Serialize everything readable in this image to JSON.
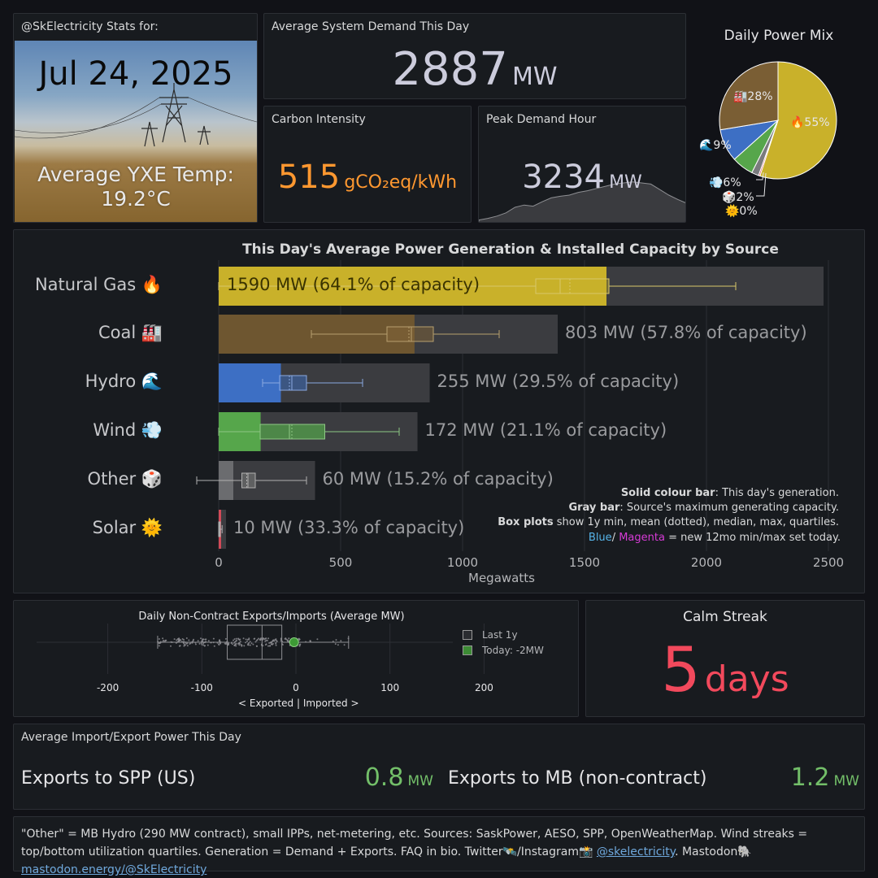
{
  "date_panel": {
    "title": "@SkElectricity Stats for:",
    "date": "Jul 24, 2025",
    "temp_line1": "Average YXE Temp:",
    "temp_line2": "19.2°C"
  },
  "demand_panel": {
    "title": "Average System Demand This Day",
    "value": "2887",
    "unit": "MW"
  },
  "carbon_panel": {
    "title": "Carbon Intensity",
    "value": "515",
    "unit": "gCO₂eq/kWh",
    "color": "#ff9830"
  },
  "peak_panel": {
    "title": "Peak Demand Hour",
    "value": "3234",
    "unit": "MW",
    "sparkline": [
      0.05,
      0.08,
      0.12,
      0.18,
      0.28,
      0.32,
      0.3,
      0.38,
      0.45,
      0.48,
      0.5,
      0.55,
      0.58,
      0.62,
      0.66,
      0.7,
      0.72,
      0.74,
      0.72,
      0.7,
      0.6,
      0.5,
      0.42,
      0.35
    ]
  },
  "power_mix": {
    "title": "Daily Power Mix",
    "slices": [
      {
        "name": "Natural Gas",
        "label": "🔥55%",
        "percent": 55,
        "color": "#c9b12a"
      },
      {
        "name": "Solar",
        "label": "🌞0%",
        "percent": 0.4,
        "color": "#e05060"
      },
      {
        "name": "Other",
        "label": "🎲2%",
        "percent": 2,
        "color": "#7a7b7e"
      },
      {
        "name": "Wind",
        "label": "💨6%",
        "percent": 6,
        "color": "#56a64b"
      },
      {
        "name": "Hydro",
        "label": "🌊9%",
        "percent": 9,
        "color": "#3d6fc4"
      },
      {
        "name": "Coal",
        "label": "🏭28%",
        "percent": 27.6,
        "color": "#7a5e34"
      }
    ]
  },
  "chart_data": {
    "type": "bar",
    "title": "This Day's Average Power Generation & Installed Capacity by Source",
    "xlabel": "Megawatts",
    "xlim": [
      0,
      2500
    ],
    "xticks": [
      "0",
      "500",
      "1000",
      "1500",
      "2000",
      "2500"
    ],
    "categories": [
      "Natural Gas 🔥",
      "Coal 🏭",
      "Hydro 🌊",
      "Wind 💨",
      "Other 🎲",
      "Solar 🌞"
    ],
    "series": [
      {
        "name": "generation",
        "values": [
          1590,
          803,
          255,
          172,
          60,
          10
        ]
      },
      {
        "name": "capacity",
        "values": [
          2480,
          1390,
          865,
          815,
          395,
          30
        ]
      }
    ],
    "colors": [
      "#c9b12a",
      "#6e5630",
      "#3d6fc4",
      "#56a64b",
      "#6b6c6f",
      "#d14a58"
    ],
    "value_labels": [
      "1590 MW (64.1% of capacity)",
      "803 MW (57.8% of capacity)",
      "255 MW (29.5% of capacity)",
      "172 MW (21.1% of capacity)",
      "60 MW (15.2% of capacity)",
      "10 MW (33.3% of capacity)"
    ],
    "boxplots": [
      {
        "min": 0,
        "q1": 1300,
        "median": 1400,
        "mean": 1440,
        "q3": 1600,
        "max": 2120
      },
      {
        "min": 380,
        "q1": 690,
        "median": 790,
        "mean": 780,
        "q3": 880,
        "max": 1150
      },
      {
        "min": 180,
        "q1": 250,
        "median": 300,
        "mean": 290,
        "q3": 360,
        "max": 590
      },
      {
        "min": 0,
        "q1": 170,
        "median": 290,
        "mean": 300,
        "q3": 435,
        "max": 740
      },
      {
        "min": -90,
        "q1": 95,
        "median": 120,
        "mean": 115,
        "q3": 150,
        "max": 360
      },
      {
        "min": 0,
        "q1": 0,
        "median": 3,
        "mean": 4,
        "q3": 6,
        "max": 14
      }
    ],
    "notes": [
      {
        "bold": "Solid colour bar",
        "text": ": This day's generation."
      },
      {
        "bold": "Gray bar",
        "text": ": Source's maximum generating capacity."
      },
      {
        "bold": "Box plots",
        "text": " show 1y min, mean (dotted), median, max, quartiles."
      }
    ],
    "note_blue": "Blue",
    "note_magenta": "Magenta",
    "note_tail": " = new 12mo min/max set today."
  },
  "exports_chart": {
    "title": "Daily Non-Contract Exports/Imports (Average MW)",
    "xticks": [
      "-200",
      "-100",
      "0",
      "100",
      "200"
    ],
    "xlabel": "< Exported | Imported >",
    "box": {
      "min": -147,
      "q1": -73,
      "median": -36,
      "q3": -15,
      "max": 56
    },
    "today": -2,
    "legend_last": "Last 1y",
    "legend_today": "Today: -2MW"
  },
  "calm_streak": {
    "title": "Calm Streak",
    "value": "5",
    "unit": "days",
    "color": "#f2495c"
  },
  "import_export": {
    "title": "Average Import/Export Power This Day",
    "items": [
      {
        "label": "Exports to SPP (US)",
        "value": "0.8",
        "unit": "MW"
      },
      {
        "label": "Exports to MB (non-contract)",
        "value": "1.2",
        "unit": "MW"
      }
    ],
    "color": "#73bf69"
  },
  "footer": {
    "text1": "\"Other\" = MB Hydro (290 MW contract), small IPPs, net-metering, etc. Sources: SaskPower, AESO, SPP, OpenWeatherMap. Wind streaks = top/bottom utilization quartiles. Generation = Demand + Exports. FAQ in bio. Twitter🛰️/Instagram📸 ",
    "link1": "@skelectricity",
    "text2": ". Mastodon🐘 ",
    "link2": "mastodon.energy/@SkElectricity"
  }
}
